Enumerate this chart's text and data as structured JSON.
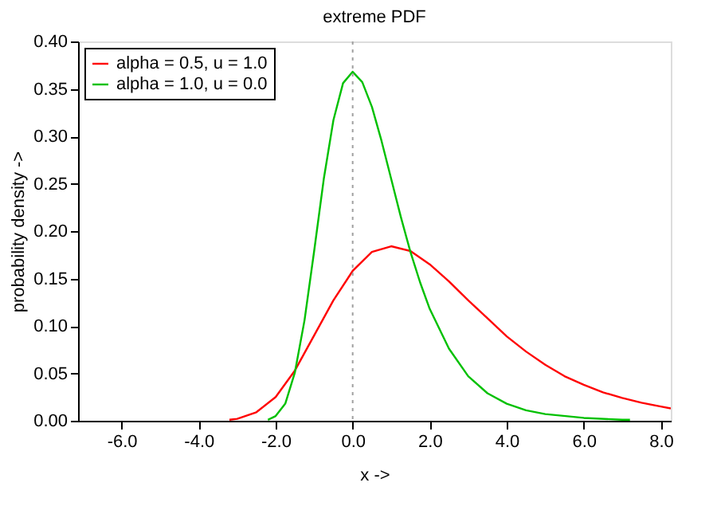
{
  "chart_data": {
    "type": "line",
    "title": "extreme PDF",
    "xlabel": "x ->",
    "ylabel": "probability density ->",
    "xlim": [
      -7.13,
      8.26
    ],
    "ylim": [
      0,
      0.4
    ],
    "xticks": [
      {
        "value": -6,
        "label": "-6.0"
      },
      {
        "value": -4,
        "label": "-4.0"
      },
      {
        "value": -2,
        "label": "-2.0"
      },
      {
        "value": 0,
        "label": "0.0"
      },
      {
        "value": 2,
        "label": "2.0"
      },
      {
        "value": 4,
        "label": "4.0"
      },
      {
        "value": 6,
        "label": "6.0"
      },
      {
        "value": 8,
        "label": "8.0"
      }
    ],
    "yticks": [
      {
        "value": 0,
        "label": "0.00"
      },
      {
        "value": 0.05,
        "label": "0.05"
      },
      {
        "value": 0.1,
        "label": "0.10"
      },
      {
        "value": 0.15,
        "label": "0.15"
      },
      {
        "value": 0.2,
        "label": "0.20"
      },
      {
        "value": 0.25,
        "label": "0.25"
      },
      {
        "value": 0.3,
        "label": "0.30"
      },
      {
        "value": 0.35,
        "label": "0.35"
      },
      {
        "value": 0.4,
        "label": "0.40"
      }
    ],
    "grid": false,
    "legend": "top left",
    "marker": "none",
    "line_style": "solid",
    "ref_lines": [
      {
        "axis": "x",
        "value": 0,
        "color": "#a0a0a0",
        "line_style": "dotted"
      }
    ],
    "series": [
      {
        "name": "alpha = 0.5, u = 1.0",
        "color": "#ff0000",
        "x": [
          -3.2,
          -3,
          -2.5,
          -2,
          -1.5,
          -1,
          -0.5,
          0,
          0.5,
          1,
          1.5,
          2,
          2.5,
          3,
          3.5,
          4,
          4.5,
          5,
          5.5,
          6,
          6.5,
          7,
          7.5,
          8,
          8.26
        ],
        "values": [
          0.001,
          0.002,
          0.009,
          0.025,
          0.053,
          0.09,
          0.127,
          0.158,
          0.178,
          0.184,
          0.179,
          0.165,
          0.147,
          0.127,
          0.108,
          0.089,
          0.073,
          0.059,
          0.047,
          0.038,
          0.03,
          0.024,
          0.019,
          0.015,
          0.013
        ]
      },
      {
        "name": "alpha = 1.0, u = 0.0",
        "color": "#00c000",
        "x": [
          -2.2,
          -2,
          -1.75,
          -1.5,
          -1.25,
          -1,
          -0.75,
          -0.5,
          -0.25,
          0,
          0.25,
          0.5,
          0.75,
          1,
          1.25,
          1.5,
          1.75,
          2,
          2.5,
          3,
          3.5,
          4,
          4.5,
          5,
          6,
          7,
          7.2
        ],
        "values": [
          0.001,
          0.005,
          0.018,
          0.051,
          0.106,
          0.179,
          0.255,
          0.317,
          0.356,
          0.368,
          0.357,
          0.331,
          0.295,
          0.255,
          0.215,
          0.178,
          0.146,
          0.118,
          0.076,
          0.047,
          0.029,
          0.018,
          0.011,
          0.007,
          0.003,
          0.001,
          0.001
        ]
      }
    ]
  }
}
